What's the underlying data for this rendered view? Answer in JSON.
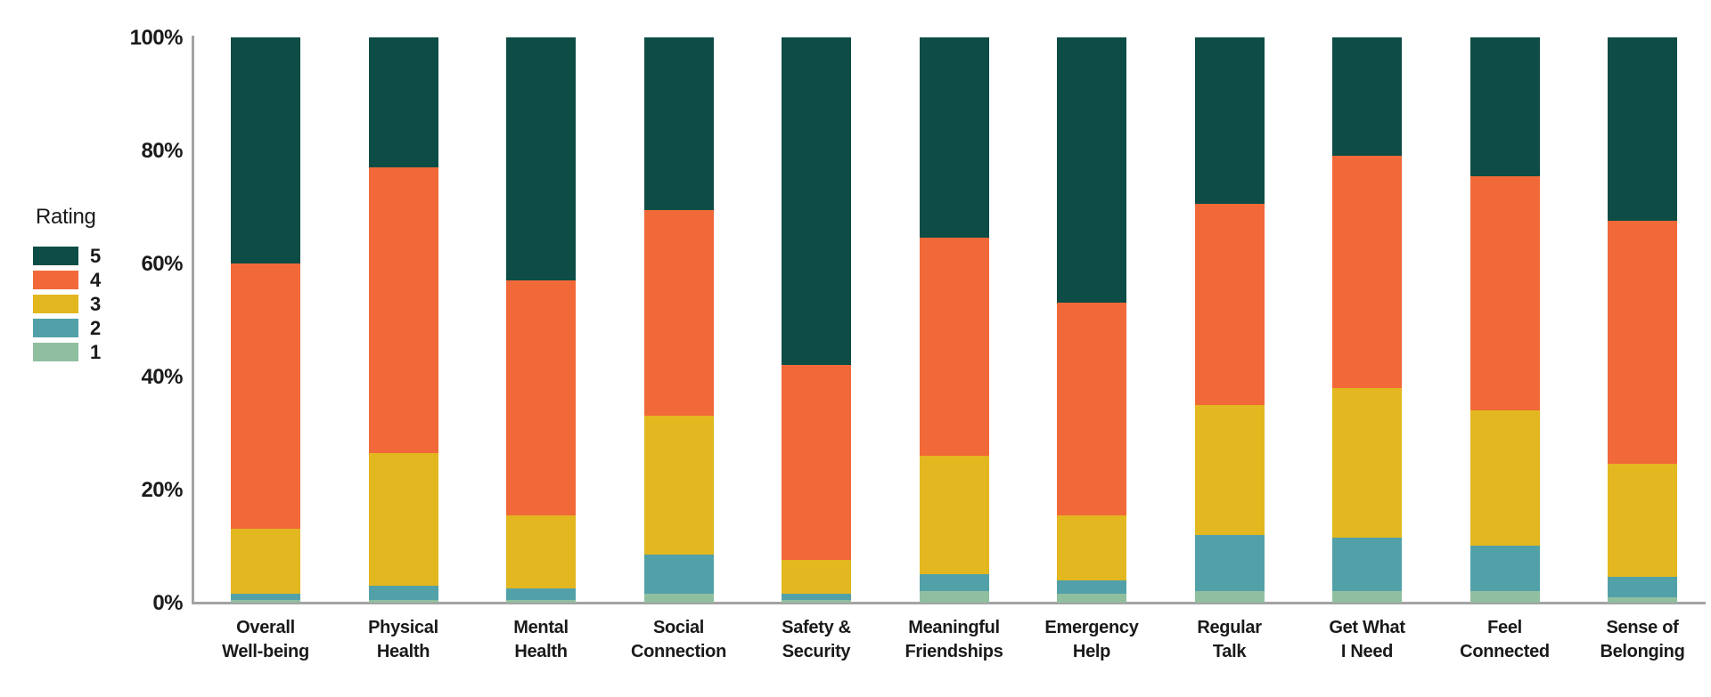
{
  "chart_data": {
    "type": "bar",
    "stacked": true,
    "orientation": "vertical",
    "unit": "percent",
    "title": "",
    "legend_title": "Rating",
    "legend_position": "left",
    "grid": false,
    "ylim": [
      0,
      100
    ],
    "y_ticks": [
      {
        "value": 0,
        "label": "0%"
      },
      {
        "value": 20,
        "label": "20%"
      },
      {
        "value": 40,
        "label": "40%"
      },
      {
        "value": 60,
        "label": "60%"
      },
      {
        "value": 80,
        "label": "80%"
      },
      {
        "value": 100,
        "label": "100%"
      }
    ],
    "categories": [
      "Overall Well-being",
      "Physical Health",
      "Mental Health",
      "Social Connection",
      "Safety & Security",
      "Meaningful Friendships",
      "Emergency Help",
      "Regular Talk",
      "Get What I Need",
      "Feel Connected",
      "Sense of Belonging"
    ],
    "category_label_lines": [
      "Overall\nWell-being",
      "Physical\nHealth",
      "Mental\nHealth",
      "Social\nConnection",
      "Safety &\nSecurity",
      "Meaningful\nFriendships",
      "Emergency\nHelp",
      "Regular\nTalk",
      "Get What\nI Need",
      "Feel\nConnected",
      "Sense of\nBelonging"
    ],
    "series": [
      {
        "name": "5",
        "color": "#0e4d45",
        "values": [
          40,
          23,
          43,
          30.5,
          58,
          35.5,
          47,
          29.5,
          21,
          24.5,
          32.5
        ]
      },
      {
        "name": "4",
        "color": "#f26939",
        "values": [
          47,
          50.5,
          41.5,
          36.5,
          34.5,
          38.5,
          37.5,
          35.5,
          41,
          41.5,
          43
        ]
      },
      {
        "name": "3",
        "color": "#e3b71f",
        "values": [
          11.5,
          23.5,
          13,
          24.5,
          6,
          21,
          11.5,
          23,
          26.5,
          24,
          20
        ]
      },
      {
        "name": "2",
        "color": "#52a1a8",
        "values": [
          1,
          2.5,
          2,
          7,
          1,
          3,
          2.5,
          10,
          9.5,
          8,
          3.5
        ]
      },
      {
        "name": "1",
        "color": "#90bfa0",
        "values": [
          0.5,
          0.5,
          0.5,
          1.5,
          0.5,
          2,
          1.5,
          2,
          2,
          2,
          1
        ]
      }
    ],
    "colors": {
      "rating_5": "#0e4d45",
      "rating_4": "#f26939",
      "rating_3": "#e3b71f",
      "rating_2": "#52a1a8",
      "rating_1": "#90bfa0",
      "axis": "#a3a3a3",
      "text": "#1a1a1a"
    }
  }
}
